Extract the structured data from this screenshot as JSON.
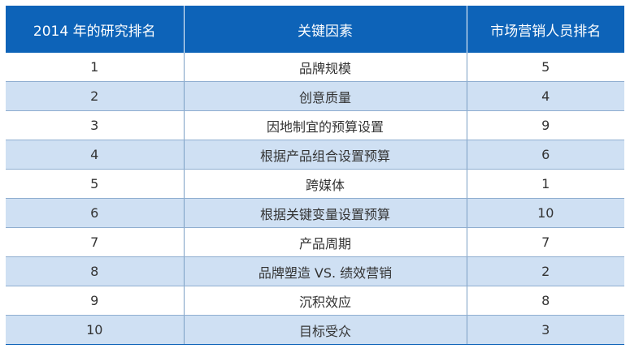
{
  "table": {
    "headers": [
      "2014 年的研究排名",
      "关键因素",
      "市场营销人员排名"
    ],
    "rows": [
      {
        "rank": "1",
        "factor": "品牌规模",
        "marketer_rank": "5"
      },
      {
        "rank": "2",
        "factor": "创意质量",
        "marketer_rank": "4"
      },
      {
        "rank": "3",
        "factor": "因地制宜的预算设置",
        "marketer_rank": "9"
      },
      {
        "rank": "4",
        "factor": "根据产品组合设置预算",
        "marketer_rank": "6"
      },
      {
        "rank": "5",
        "factor": "跨媒体",
        "marketer_rank": "1"
      },
      {
        "rank": "6",
        "factor": "根据关键变量设置预算",
        "marketer_rank": "10"
      },
      {
        "rank": "7",
        "factor": "产品周期",
        "marketer_rank": "7"
      },
      {
        "rank": "8",
        "factor": "品牌塑造 VS. 绩效营销",
        "marketer_rank": "2"
      },
      {
        "rank": "9",
        "factor": "沉积效应",
        "marketer_rank": "8"
      },
      {
        "rank": "10",
        "factor": "目标受众",
        "marketer_rank": "3"
      }
    ]
  },
  "colors": {
    "header_bg": "#0d63b8",
    "header_text": "#ffffff",
    "stripe_bg": "#cfe0f3",
    "row_bg": "#ffffff"
  }
}
